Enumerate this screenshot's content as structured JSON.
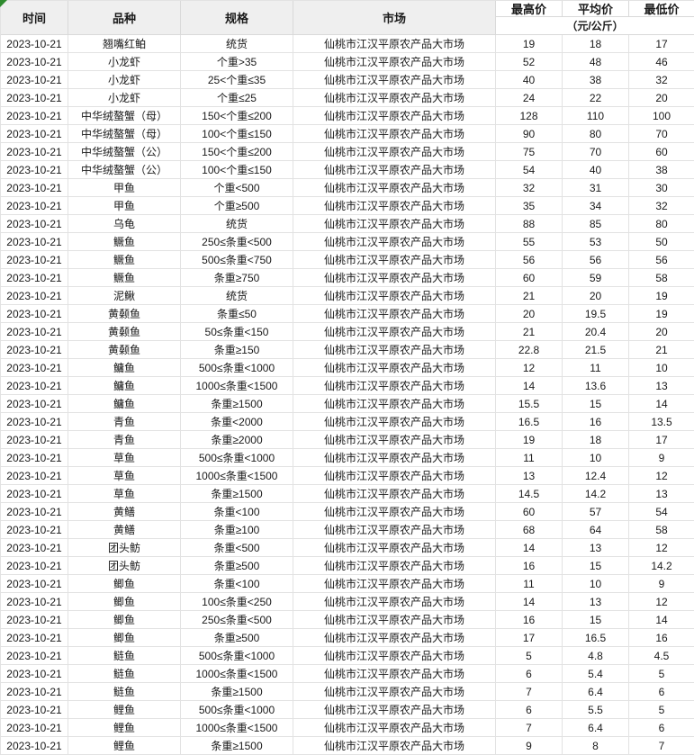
{
  "corner_marker": {
    "color": "#2e8b2e",
    "meaning": "sheet-corner-flag"
  },
  "table": {
    "colors": {
      "header_bg": "#efefef",
      "border": "#d9d9d9",
      "row_border": "#e2e2e2",
      "text": "#1a1a1a"
    },
    "headers": {
      "time": "时间",
      "variety": "品种",
      "spec": "规格",
      "market": "市场",
      "high": "最高价",
      "avg": "平均价",
      "low": "最低价",
      "unit": "（元/公斤）"
    },
    "rows": [
      {
        "date": "2023-10-21",
        "variety": "翘嘴红鲌",
        "spec": "统货",
        "market": "仙桃市江汉平原农产品大市场",
        "high": "19",
        "avg": "18",
        "low": "17"
      },
      {
        "date": "2023-10-21",
        "variety": "小龙虾",
        "spec": "个重>35",
        "market": "仙桃市江汉平原农产品大市场",
        "high": "52",
        "avg": "48",
        "low": "46"
      },
      {
        "date": "2023-10-21",
        "variety": "小龙虾",
        "spec": "25<个重≤35",
        "market": "仙桃市江汉平原农产品大市场",
        "high": "40",
        "avg": "38",
        "low": "32"
      },
      {
        "date": "2023-10-21",
        "variety": "小龙虾",
        "spec": "个重≤25",
        "market": "仙桃市江汉平原农产品大市场",
        "high": "24",
        "avg": "22",
        "low": "20"
      },
      {
        "date": "2023-10-21",
        "variety": "中华绒螯蟹（母）",
        "spec": "150<个重≤200",
        "market": "仙桃市江汉平原农产品大市场",
        "high": "128",
        "avg": "110",
        "low": "100"
      },
      {
        "date": "2023-10-21",
        "variety": "中华绒螯蟹（母）",
        "spec": "100<个重≤150",
        "market": "仙桃市江汉平原农产品大市场",
        "high": "90",
        "avg": "80",
        "low": "70"
      },
      {
        "date": "2023-10-21",
        "variety": "中华绒螯蟹（公）",
        "spec": "150<个重≤200",
        "market": "仙桃市江汉平原农产品大市场",
        "high": "75",
        "avg": "70",
        "low": "60"
      },
      {
        "date": "2023-10-21",
        "variety": "中华绒螯蟹（公）",
        "spec": "100<个重≤150",
        "market": "仙桃市江汉平原农产品大市场",
        "high": "54",
        "avg": "40",
        "low": "38"
      },
      {
        "date": "2023-10-21",
        "variety": "甲鱼",
        "spec": "个重<500",
        "market": "仙桃市江汉平原农产品大市场",
        "high": "32",
        "avg": "31",
        "low": "30"
      },
      {
        "date": "2023-10-21",
        "variety": "甲鱼",
        "spec": "个重≥500",
        "market": "仙桃市江汉平原农产品大市场",
        "high": "35",
        "avg": "34",
        "low": "32"
      },
      {
        "date": "2023-10-21",
        "variety": "乌龟",
        "spec": "统货",
        "market": "仙桃市江汉平原农产品大市场",
        "high": "88",
        "avg": "85",
        "low": "80"
      },
      {
        "date": "2023-10-21",
        "variety": "鳜鱼",
        "spec": "250≤条重<500",
        "market": "仙桃市江汉平原农产品大市场",
        "high": "55",
        "avg": "53",
        "low": "50"
      },
      {
        "date": "2023-10-21",
        "variety": "鳜鱼",
        "spec": "500≤条重<750",
        "market": "仙桃市江汉平原农产品大市场",
        "high": "56",
        "avg": "56",
        "low": "56"
      },
      {
        "date": "2023-10-21",
        "variety": "鳜鱼",
        "spec": "条重≥750",
        "market": "仙桃市江汉平原农产品大市场",
        "high": "60",
        "avg": "59",
        "low": "58"
      },
      {
        "date": "2023-10-21",
        "variety": "泥鳅",
        "spec": "统货",
        "market": "仙桃市江汉平原农产品大市场",
        "high": "21",
        "avg": "20",
        "low": "19"
      },
      {
        "date": "2023-10-21",
        "variety": "黄颡鱼",
        "spec": "条重≤50",
        "market": "仙桃市江汉平原农产品大市场",
        "high": "20",
        "avg": "19.5",
        "low": "19"
      },
      {
        "date": "2023-10-21",
        "variety": "黄颡鱼",
        "spec": "50≤条重<150",
        "market": "仙桃市江汉平原农产品大市场",
        "high": "21",
        "avg": "20.4",
        "low": "20"
      },
      {
        "date": "2023-10-21",
        "variety": "黄颡鱼",
        "spec": "条重≥150",
        "market": "仙桃市江汉平原农产品大市场",
        "high": "22.8",
        "avg": "21.5",
        "low": "21"
      },
      {
        "date": "2023-10-21",
        "variety": "鳙鱼",
        "spec": "500≤条重<1000",
        "market": "仙桃市江汉平原农产品大市场",
        "high": "12",
        "avg": "11",
        "low": "10"
      },
      {
        "date": "2023-10-21",
        "variety": "鳙鱼",
        "spec": "1000≤条重<1500",
        "market": "仙桃市江汉平原农产品大市场",
        "high": "14",
        "avg": "13.6",
        "low": "13"
      },
      {
        "date": "2023-10-21",
        "variety": "鳙鱼",
        "spec": "条重≥1500",
        "market": "仙桃市江汉平原农产品大市场",
        "high": "15.5",
        "avg": "15",
        "low": "14"
      },
      {
        "date": "2023-10-21",
        "variety": "青鱼",
        "spec": "条重<2000",
        "market": "仙桃市江汉平原农产品大市场",
        "high": "16.5",
        "avg": "16",
        "low": "13.5"
      },
      {
        "date": "2023-10-21",
        "variety": "青鱼",
        "spec": "条重≥2000",
        "market": "仙桃市江汉平原农产品大市场",
        "high": "19",
        "avg": "18",
        "low": "17"
      },
      {
        "date": "2023-10-21",
        "variety": "草鱼",
        "spec": "500≤条重<1000",
        "market": "仙桃市江汉平原农产品大市场",
        "high": "11",
        "avg": "10",
        "low": "9"
      },
      {
        "date": "2023-10-21",
        "variety": "草鱼",
        "spec": "1000≤条重<1500",
        "market": "仙桃市江汉平原农产品大市场",
        "high": "13",
        "avg": "12.4",
        "low": "12"
      },
      {
        "date": "2023-10-21",
        "variety": "草鱼",
        "spec": "条重≥1500",
        "market": "仙桃市江汉平原农产品大市场",
        "high": "14.5",
        "avg": "14.2",
        "low": "13"
      },
      {
        "date": "2023-10-21",
        "variety": "黄鳝",
        "spec": "条重<100",
        "market": "仙桃市江汉平原农产品大市场",
        "high": "60",
        "avg": "57",
        "low": "54"
      },
      {
        "date": "2023-10-21",
        "variety": "黄鳝",
        "spec": "条重≥100",
        "market": "仙桃市江汉平原农产品大市场",
        "high": "68",
        "avg": "64",
        "low": "58"
      },
      {
        "date": "2023-10-21",
        "variety": "团头鲂",
        "spec": "条重<500",
        "market": "仙桃市江汉平原农产品大市场",
        "high": "14",
        "avg": "13",
        "low": "12"
      },
      {
        "date": "2023-10-21",
        "variety": "团头鲂",
        "spec": "条重≥500",
        "market": "仙桃市江汉平原农产品大市场",
        "high": "16",
        "avg": "15",
        "low": "14.2"
      },
      {
        "date": "2023-10-21",
        "variety": "鲫鱼",
        "spec": "条重<100",
        "market": "仙桃市江汉平原农产品大市场",
        "high": "11",
        "avg": "10",
        "low": "9"
      },
      {
        "date": "2023-10-21",
        "variety": "鲫鱼",
        "spec": "100≤条重<250",
        "market": "仙桃市江汉平原农产品大市场",
        "high": "14",
        "avg": "13",
        "low": "12"
      },
      {
        "date": "2023-10-21",
        "variety": "鲫鱼",
        "spec": "250≤条重<500",
        "market": "仙桃市江汉平原农产品大市场",
        "high": "16",
        "avg": "15",
        "low": "14"
      },
      {
        "date": "2023-10-21",
        "variety": "鲫鱼",
        "spec": "条重≥500",
        "market": "仙桃市江汉平原农产品大市场",
        "high": "17",
        "avg": "16.5",
        "low": "16"
      },
      {
        "date": "2023-10-21",
        "variety": "鲢鱼",
        "spec": "500≤条重<1000",
        "market": "仙桃市江汉平原农产品大市场",
        "high": "5",
        "avg": "4.8",
        "low": "4.5"
      },
      {
        "date": "2023-10-21",
        "variety": "鲢鱼",
        "spec": "1000≤条重<1500",
        "market": "仙桃市江汉平原农产品大市场",
        "high": "6",
        "avg": "5.4",
        "low": "5"
      },
      {
        "date": "2023-10-21",
        "variety": "鲢鱼",
        "spec": "条重≥1500",
        "market": "仙桃市江汉平原农产品大市场",
        "high": "7",
        "avg": "6.4",
        "low": "6"
      },
      {
        "date": "2023-10-21",
        "variety": "鲤鱼",
        "spec": "500≤条重<1000",
        "market": "仙桃市江汉平原农产品大市场",
        "high": "6",
        "avg": "5.5",
        "low": "5"
      },
      {
        "date": "2023-10-21",
        "variety": "鲤鱼",
        "spec": "1000≤条重<1500",
        "market": "仙桃市江汉平原农产品大市场",
        "high": "7",
        "avg": "6.4",
        "low": "6"
      },
      {
        "date": "2023-10-21",
        "variety": "鲤鱼",
        "spec": "条重≥1500",
        "market": "仙桃市江汉平原农产品大市场",
        "high": "9",
        "avg": "8",
        "low": "7"
      }
    ]
  }
}
